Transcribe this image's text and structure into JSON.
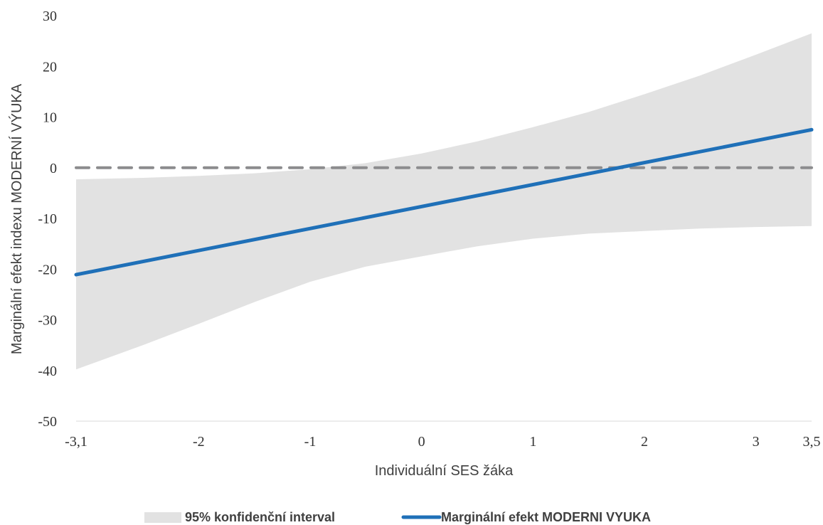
{
  "chart_data": {
    "type": "line",
    "xlabel": "Individuální SES žáka",
    "ylabel": "Marginální efekt indexu MODERNÍ VÝUKA",
    "xlim": [
      -3.1,
      3.5
    ],
    "ylim": [
      -50,
      30
    ],
    "x_ticks": [
      {
        "value": -3.1,
        "label": "-3,1"
      },
      {
        "value": -2,
        "label": "-2"
      },
      {
        "value": -1,
        "label": "-1"
      },
      {
        "value": 0,
        "label": "0"
      },
      {
        "value": 1,
        "label": "1"
      },
      {
        "value": 2,
        "label": "2"
      },
      {
        "value": 3,
        "label": "3"
      },
      {
        "value": 3.5,
        "label": "3,5"
      }
    ],
    "y_ticks": [
      {
        "value": 30,
        "label": "30"
      },
      {
        "value": 20,
        "label": "20"
      },
      {
        "value": 10,
        "label": "10"
      },
      {
        "value": 0,
        "label": "0"
      },
      {
        "value": -10,
        "label": "-10"
      },
      {
        "value": -20,
        "label": "-20"
      },
      {
        "value": -30,
        "label": "-30"
      },
      {
        "value": -40,
        "label": "-40"
      },
      {
        "value": -50,
        "label": "-50"
      }
    ],
    "reference_line": {
      "y": 0,
      "style": "dashed",
      "color": "#8c8c8e"
    },
    "grid": false,
    "legend_position": "bottom",
    "series": [
      {
        "name": "95% konfidenční interval",
        "kind": "band",
        "color": "#e2e2e2",
        "x": [
          -3.1,
          -2.5,
          -2.0,
          -1.5,
          -1.0,
          -0.5,
          0.0,
          0.5,
          1.0,
          1.5,
          2.0,
          2.5,
          3.0,
          3.5
        ],
        "upper": [
          -2.3,
          -2.0,
          -1.6,
          -1.1,
          -0.3,
          0.9,
          2.8,
          5.2,
          8.0,
          11.0,
          14.5,
          18.2,
          22.3,
          26.5
        ],
        "lower": [
          -39.8,
          -35.0,
          -30.8,
          -26.5,
          -22.5,
          -19.5,
          -17.5,
          -15.5,
          -14.0,
          -13.0,
          -12.5,
          -12.0,
          -11.7,
          -11.5
        ]
      },
      {
        "name": "Marginální efekt MODERNI VYUKA",
        "kind": "line",
        "color": "#1f70b8",
        "x": [
          -3.1,
          3.5
        ],
        "y": [
          -21.1,
          7.5
        ]
      }
    ]
  }
}
